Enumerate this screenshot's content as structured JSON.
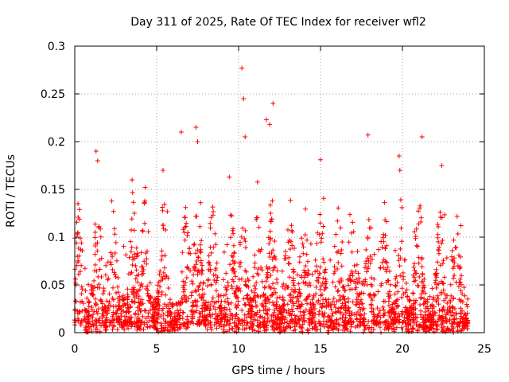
{
  "chart_data": {
    "type": "scatter",
    "title": "Day 311 of 2025, Rate Of TEC Index for receiver wfl2",
    "xlabel": "GPS time / hours",
    "ylabel": "ROTI / TECUs",
    "xlim": [
      0,
      25
    ],
    "ylim": [
      0,
      0.3
    ],
    "x_ticks": [
      "0",
      "5",
      "10",
      "15",
      "20",
      "25"
    ],
    "y_ticks": [
      "0",
      "0.05",
      "0.1",
      "0.15",
      "0.2",
      "0.25",
      "0.3"
    ],
    "x_tick_values": [
      0,
      5,
      10,
      15,
      20,
      25
    ],
    "y_tick_values": [
      0,
      0.05,
      0.1,
      0.15,
      0.2,
      0.25,
      0.3
    ],
    "grid": true,
    "marker": "+",
    "marker_color": "#ff0000",
    "series": [
      {
        "name": "ROTI",
        "x_range": [
          0,
          24
        ],
        "notable_points": [
          [
            0.2,
            0.135
          ],
          [
            1.3,
            0.19
          ],
          [
            1.4,
            0.18
          ],
          [
            3.5,
            0.16
          ],
          [
            4.3,
            0.152
          ],
          [
            6.5,
            0.21
          ],
          [
            7.4,
            0.215
          ],
          [
            7.5,
            0.2
          ],
          [
            10.2,
            0.277
          ],
          [
            10.3,
            0.245
          ],
          [
            10.4,
            0.205
          ],
          [
            11.7,
            0.223
          ],
          [
            11.9,
            0.218
          ],
          [
            12.1,
            0.24
          ],
          [
            15.0,
            0.181
          ],
          [
            17.9,
            0.207
          ],
          [
            19.8,
            0.185
          ],
          [
            21.2,
            0.205
          ],
          [
            22.4,
            0.175
          ]
        ]
      }
    ]
  }
}
